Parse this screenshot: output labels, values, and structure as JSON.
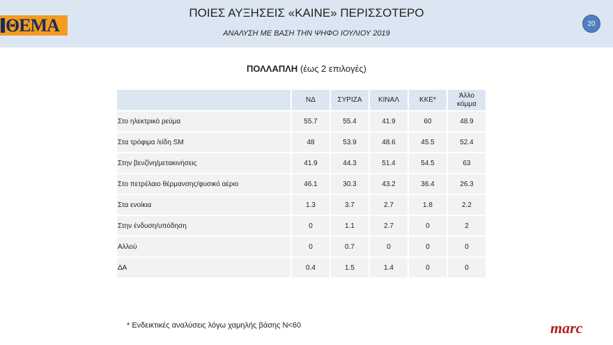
{
  "header": {
    "logo_text": "ΘΕΜΑ",
    "title": "ΠΟΙΕΣ ΑΥΞΗΣΕΙΣ «ΚΑΙΝΕ» ΠΕΡΙΣΣΟΤΕΡΟ",
    "subtitle": "ΑΝΑΛΥΣΗ ΜΕ ΒΑΣΗ ΤΗΝ ΨΗΦΟ ΙΟΥΛΙΟΥ 2019",
    "page_number": "20",
    "accent": "#dce6f2"
  },
  "question": {
    "bold": "ΠΟΛΛΑΠΛΗ",
    "rest": " (έως 2 επιλογές)"
  },
  "table": {
    "columns": [
      "ΝΔ",
      "ΣΥΡΙΖΑ",
      "ΚΙΝΑΛ",
      "ΚΚΕ*",
      "Άλλο κόμμα"
    ],
    "rows": [
      {
        "label": "Στο ηλεκτρικό ρεύμα",
        "values": [
          "55.7",
          "55.4",
          "41.9",
          "60",
          "48.9"
        ]
      },
      {
        "label": "Στα τρόφιμα /είδη SM",
        "values": [
          "48",
          "53.9",
          "48.6",
          "45.5",
          "52.4"
        ]
      },
      {
        "label": "Στην βενζίνη/μετακινήσεις",
        "values": [
          "41.9",
          "44.3",
          "51.4",
          "54.5",
          "63"
        ]
      },
      {
        "label": "Στο πετρέλαιο θέρμανσης/φυσικό αέριο",
        "values": [
          "46.1",
          "30.3",
          "43.2",
          "36.4",
          "26.3"
        ]
      },
      {
        "label": "Στα ενοίκια",
        "values": [
          "1.3",
          "3.7",
          "2.7",
          "1.8",
          "2.2"
        ]
      },
      {
        "label": "Στην ένδυση/υπόδηση",
        "values": [
          "0",
          "1.1",
          "2.7",
          "0",
          "2"
        ]
      },
      {
        "label": "Αλλού",
        "values": [
          "0",
          "0.7",
          "0",
          "0",
          "0"
        ]
      },
      {
        "label": "ΔΑ",
        "values": [
          "0.4",
          "1.5",
          "1.4",
          "0",
          "0"
        ]
      }
    ]
  },
  "footnote": "* Ενδεικτικές αναλύσεις λόγω χαμηλής βάσης Ν<60",
  "brand": "marc"
}
